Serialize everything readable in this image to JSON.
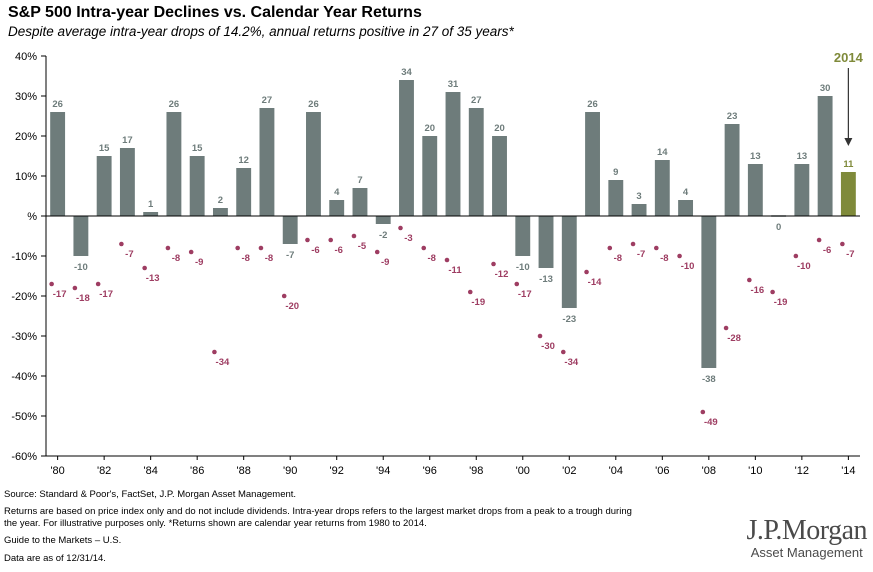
{
  "chart_data": {
    "type": "bar",
    "title": "S&P 500 Intra-year Declines vs. Calendar Year Returns",
    "subtitle": "Despite average intra-year drops of 14.2%, annual returns positive in 27 of 35 years*",
    "x": [
      1980,
      1981,
      1982,
      1983,
      1984,
      1985,
      1986,
      1987,
      1988,
      1989,
      1990,
      1991,
      1992,
      1993,
      1994,
      1995,
      1996,
      1997,
      1998,
      1999,
      2000,
      2001,
      2002,
      2003,
      2004,
      2005,
      2006,
      2007,
      2008,
      2009,
      2010,
      2011,
      2012,
      2013,
      2014
    ],
    "x_tick_labels": [
      "'80",
      "'82",
      "'84",
      "'86",
      "'88",
      "'90",
      "'92",
      "'94",
      "'96",
      "'98",
      "'00",
      "'02",
      "'04",
      "'06",
      "'08",
      "'10",
      "'12",
      "'14"
    ],
    "series": [
      {
        "kind": "bar",
        "color": "#6e7c7b",
        "values": [
          26,
          -10,
          15,
          17,
          1,
          26,
          15,
          2,
          12,
          27,
          -7,
          26,
          4,
          7,
          -2,
          34,
          20,
          31,
          27,
          20,
          -10,
          -13,
          -23,
          26,
          9,
          3,
          14,
          4,
          -38,
          23,
          13,
          0,
          13,
          30,
          11
        ]
      },
      {
        "kind": "point",
        "color": "#9e3d62",
        "values": [
          -17,
          -18,
          -17,
          -7,
          -13,
          -8,
          -9,
          -34,
          -8,
          -8,
          -20,
          -6,
          -6,
          -5,
          -9,
          -3,
          -8,
          -11,
          -19,
          -12,
          -17,
          -30,
          -34,
          -14,
          -8,
          -7,
          -8,
          -10,
          -49,
          -28,
          -16,
          -19,
          -10,
          -6,
          -7
        ]
      }
    ],
    "highlight": {
      "label": "2014",
      "year": 2014,
      "color": "#7f8a3a"
    },
    "y_ticks": [
      40,
      30,
      20,
      10,
      0,
      -10,
      -20,
      -30,
      -40,
      -50,
      -60
    ],
    "y_tick_labels": [
      "40%",
      "30%",
      "20%",
      "10%",
      "%",
      "-10%",
      "-20%",
      "-30%",
      "-40%",
      "-50%",
      "-60%"
    ],
    "ylim": [
      -60,
      40
    ],
    "grid": false
  },
  "footer": {
    "source": "Source: Standard & Poor's, FactSet, J.P. Morgan Asset Management.",
    "note1": "Returns are based on price index only and do not include dividends. Intra-year drops refers to the largest market drops from a peak to a trough during",
    "note2": "the year. For illustrative purposes only.  *Returns shown are calendar year returns from 1980 to 2014.",
    "guide": "Guide to the Markets – U.S.",
    "date": "Data are as of 12/31/14."
  },
  "logo": {
    "name": "J.P.Morgan",
    "sub": "Asset Management"
  }
}
